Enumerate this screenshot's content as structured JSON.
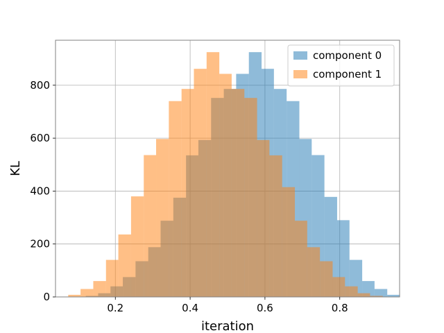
{
  "chart_data": {
    "type": "bar",
    "xlabel": "iteration",
    "ylabel": "KL",
    "xlim": [
      0.04,
      0.96
    ],
    "ylim": [
      0,
      970
    ],
    "xticks": [
      0.2,
      0.4,
      0.6,
      0.8
    ],
    "xtick_labels": [
      "0.2",
      "0.4",
      "0.6",
      "0.8"
    ],
    "yticks": [
      0,
      200,
      400,
      600,
      800
    ],
    "ytick_labels": [
      "0",
      "200",
      "400",
      "600",
      "800"
    ],
    "grid": true,
    "legend_position": "top-right",
    "series": [
      {
        "name": "component 0",
        "color": "#1f77b4",
        "alpha": 0.5,
        "bins": [
          [
            0.121,
            0.154,
            4
          ],
          [
            0.154,
            0.187,
            14
          ],
          [
            0.187,
            0.22,
            40
          ],
          [
            0.22,
            0.254,
            75
          ],
          [
            0.254,
            0.288,
            135
          ],
          [
            0.288,
            0.321,
            188
          ],
          [
            0.321,
            0.355,
            288
          ],
          [
            0.355,
            0.389,
            375
          ],
          [
            0.389,
            0.422,
            535
          ],
          [
            0.422,
            0.456,
            593
          ],
          [
            0.456,
            0.49,
            752
          ],
          [
            0.49,
            0.523,
            786
          ],
          [
            0.523,
            0.557,
            843
          ],
          [
            0.557,
            0.591,
            925
          ],
          [
            0.591,
            0.624,
            862
          ],
          [
            0.624,
            0.658,
            786
          ],
          [
            0.658,
            0.692,
            740
          ],
          [
            0.692,
            0.725,
            597
          ],
          [
            0.725,
            0.759,
            536
          ],
          [
            0.759,
            0.793,
            378
          ],
          [
            0.793,
            0.826,
            290
          ],
          [
            0.826,
            0.86,
            140
          ],
          [
            0.86,
            0.893,
            60
          ],
          [
            0.893,
            0.927,
            30
          ],
          [
            0.927,
            0.961,
            8
          ]
        ]
      },
      {
        "name": "component 1",
        "color": "#ff7f0e",
        "alpha": 0.5,
        "bins": [
          [
            0.074,
            0.107,
            8
          ],
          [
            0.107,
            0.141,
            30
          ],
          [
            0.141,
            0.175,
            60
          ],
          [
            0.175,
            0.208,
            140
          ],
          [
            0.208,
            0.242,
            236
          ],
          [
            0.242,
            0.276,
            380
          ],
          [
            0.276,
            0.309,
            536
          ],
          [
            0.309,
            0.343,
            597
          ],
          [
            0.343,
            0.377,
            740
          ],
          [
            0.377,
            0.41,
            786
          ],
          [
            0.41,
            0.444,
            862
          ],
          [
            0.444,
            0.478,
            925
          ],
          [
            0.478,
            0.511,
            843
          ],
          [
            0.511,
            0.545,
            786
          ],
          [
            0.545,
            0.579,
            752
          ],
          [
            0.579,
            0.612,
            593
          ],
          [
            0.612,
            0.646,
            535
          ],
          [
            0.646,
            0.68,
            415
          ],
          [
            0.68,
            0.713,
            288
          ],
          [
            0.713,
            0.747,
            188
          ],
          [
            0.747,
            0.781,
            135
          ],
          [
            0.781,
            0.814,
            75
          ],
          [
            0.814,
            0.848,
            40
          ],
          [
            0.848,
            0.881,
            14
          ],
          [
            0.881,
            0.915,
            4
          ]
        ]
      }
    ]
  }
}
